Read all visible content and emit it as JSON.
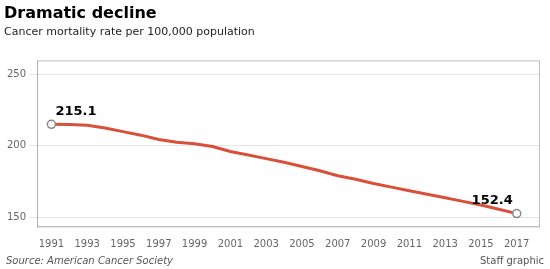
{
  "chart_data": {
    "type": "line",
    "title": "Dramatic decline",
    "subtitle": "Cancer mortality rate per 100,000 population",
    "source": "Source: American Cancer Society",
    "credit": "Staff graphic",
    "x": [
      1991,
      1992,
      1993,
      1994,
      1995,
      1996,
      1997,
      1998,
      1999,
      2000,
      2001,
      2002,
      2003,
      2004,
      2005,
      2006,
      2007,
      2008,
      2009,
      2010,
      2011,
      2012,
      2013,
      2014,
      2015,
      2016,
      2017
    ],
    "values": [
      215.1,
      215.0,
      214.5,
      212.5,
      210.0,
      207.5,
      204.5,
      202.5,
      201.5,
      199.5,
      196.0,
      193.5,
      191.0,
      188.5,
      185.5,
      182.5,
      179.0,
      176.5,
      173.5,
      171.0,
      168.5,
      166.0,
      163.5,
      161.0,
      158.5,
      155.5,
      152.4
    ],
    "color": "#d9503a",
    "annotations": [
      {
        "x": 1991,
        "y": 215.1,
        "text": "215.1"
      },
      {
        "x": 2017,
        "y": 152.4,
        "text": "152.4"
      }
    ],
    "xlim": [
      1990.2,
      2018.3
    ],
    "xticks": [
      1991,
      1993,
      1995,
      1997,
      1999,
      2001,
      2003,
      2005,
      2007,
      2009,
      2011,
      2013,
      2015,
      2017
    ],
    "ylim": [
      143,
      260
    ],
    "yticks": [
      150,
      200,
      250
    ],
    "grid": "y"
  }
}
